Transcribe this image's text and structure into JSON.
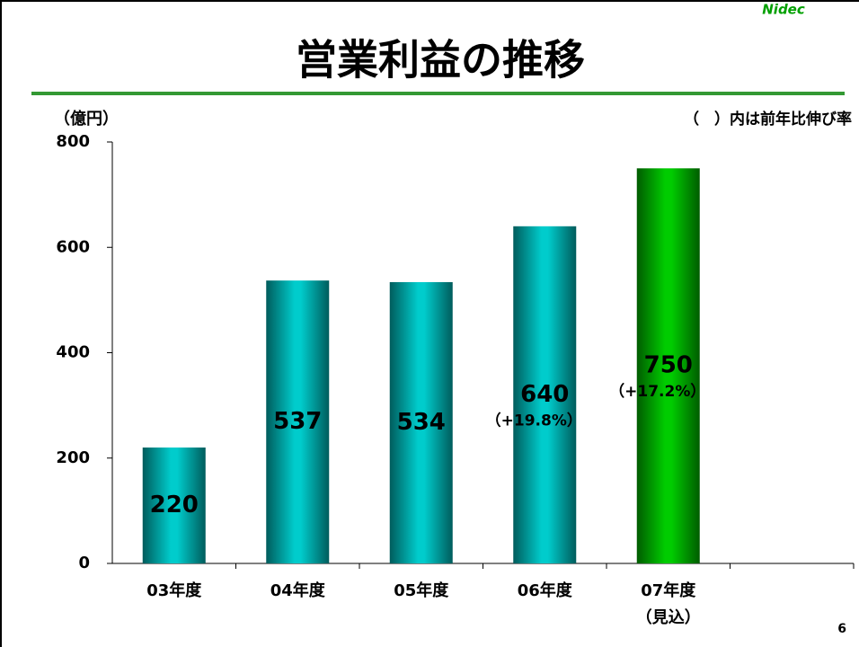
{
  "chart_data": {
    "type": "bar",
    "logo": "Nidec",
    "title": "営業利益の推移",
    "y_axis_label": "（億円）",
    "note": "（　）内は前年比伸び率",
    "categories": [
      "03年度",
      "04年度",
      "05年度",
      "06年度",
      "07年度"
    ],
    "category_note": "（見込）",
    "values": [
      220,
      537,
      534,
      640,
      750
    ],
    "growth_labels": [
      null,
      null,
      null,
      "（+19.8%）",
      "（+17.2%）"
    ],
    "colors": [
      "#00cccc",
      "#00cccc",
      "#00cccc",
      "#00cccc",
      "#00cc00"
    ],
    "ylim": [
      0,
      800
    ],
    "yticks": [
      0,
      200,
      400,
      600,
      800
    ],
    "page_number": "6"
  }
}
